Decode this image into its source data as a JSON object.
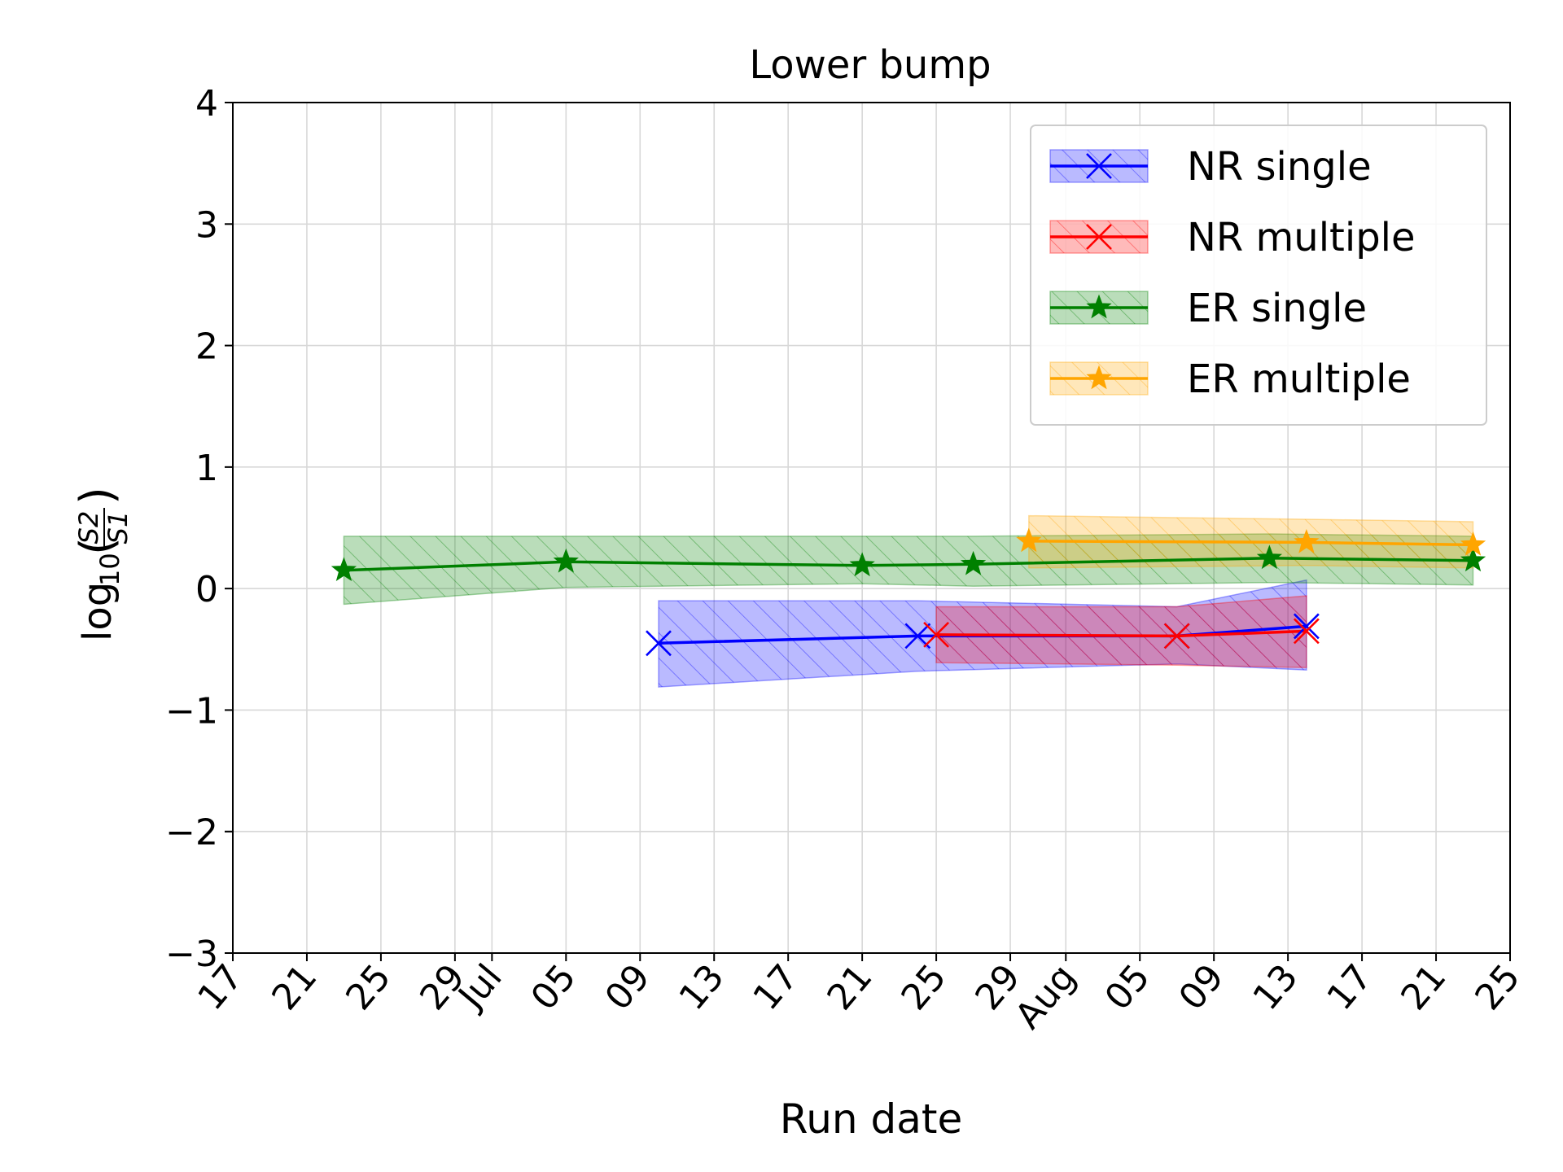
{
  "chart_data": {
    "type": "line",
    "title": "Lower bump",
    "title_color": "#ff0000",
    "xlabel": "Run date",
    "ylabel_base": "log",
    "ylabel_sub": "10",
    "ylabel_num": "S2",
    "ylabel_den": "S1",
    "x_type": "date",
    "xlim": [
      "2016-06-17",
      "2016-08-25"
    ],
    "ylim": [
      -3,
      4
    ],
    "yticks": [
      -3,
      -2,
      -1,
      0,
      1,
      2,
      3,
      4
    ],
    "ytick_labels": [
      "−3",
      "−2",
      "−1",
      "0",
      "1",
      "2",
      "3",
      "4"
    ],
    "xticks": [
      {
        "date": "2016-06-17",
        "label": "17"
      },
      {
        "date": "2016-06-21",
        "label": "21"
      },
      {
        "date": "2016-06-25",
        "label": "25"
      },
      {
        "date": "2016-06-29",
        "label": "29"
      },
      {
        "date": "2016-07-01",
        "label": "Jul"
      },
      {
        "date": "2016-07-05",
        "label": "05"
      },
      {
        "date": "2016-07-09",
        "label": "09"
      },
      {
        "date": "2016-07-13",
        "label": "13"
      },
      {
        "date": "2016-07-17",
        "label": "17"
      },
      {
        "date": "2016-07-21",
        "label": "21"
      },
      {
        "date": "2016-07-25",
        "label": "25"
      },
      {
        "date": "2016-07-29",
        "label": "29"
      },
      {
        "date": "2016-08-01",
        "label": "Aug"
      },
      {
        "date": "2016-08-05",
        "label": "05"
      },
      {
        "date": "2016-08-09",
        "label": "09"
      },
      {
        "date": "2016-08-13",
        "label": "13"
      },
      {
        "date": "2016-08-17",
        "label": "17"
      },
      {
        "date": "2016-08-21",
        "label": "21"
      },
      {
        "date": "2016-08-25",
        "label": "25"
      }
    ],
    "grid": true,
    "legend_position": "top-right",
    "series": [
      {
        "name": "NR single",
        "color": "#0000ff",
        "marker": "x",
        "x": [
          "2016-07-10",
          "2016-07-24",
          "2016-08-07",
          "2016-08-14"
        ],
        "y": [
          -0.45,
          -0.39,
          -0.39,
          -0.31
        ],
        "band_upper": [
          -0.1,
          -0.1,
          -0.15,
          0.07
        ],
        "band_lower": [
          -0.81,
          -0.68,
          -0.62,
          -0.67
        ]
      },
      {
        "name": "NR multiple",
        "color": "#ff0000",
        "marker": "x",
        "x": [
          "2016-07-25",
          "2016-08-07",
          "2016-08-14"
        ],
        "y": [
          -0.38,
          -0.39,
          -0.35
        ],
        "band_upper": [
          -0.15,
          -0.15,
          -0.06
        ],
        "band_lower": [
          -0.61,
          -0.63,
          -0.65
        ]
      },
      {
        "name": "ER single",
        "color": "#008000",
        "marker": "star",
        "x": [
          "2016-06-23",
          "2016-07-05",
          "2016-07-21",
          "2016-07-27",
          "2016-08-12",
          "2016-08-23"
        ],
        "y": [
          0.15,
          0.22,
          0.19,
          0.2,
          0.25,
          0.23
        ],
        "band_upper": [
          0.43,
          0.43,
          0.43,
          0.43,
          0.45,
          0.43
        ],
        "band_lower": [
          -0.13,
          0.01,
          0.04,
          0.02,
          0.05,
          0.03
        ]
      },
      {
        "name": "ER multiple",
        "color": "#ffa500",
        "marker": "star",
        "x": [
          "2016-07-30",
          "2016-08-14",
          "2016-08-23"
        ],
        "y": [
          0.39,
          0.38,
          0.36
        ],
        "band_upper": [
          0.6,
          0.57,
          0.55
        ],
        "band_lower": [
          0.17,
          0.19,
          0.17
        ]
      }
    ]
  }
}
